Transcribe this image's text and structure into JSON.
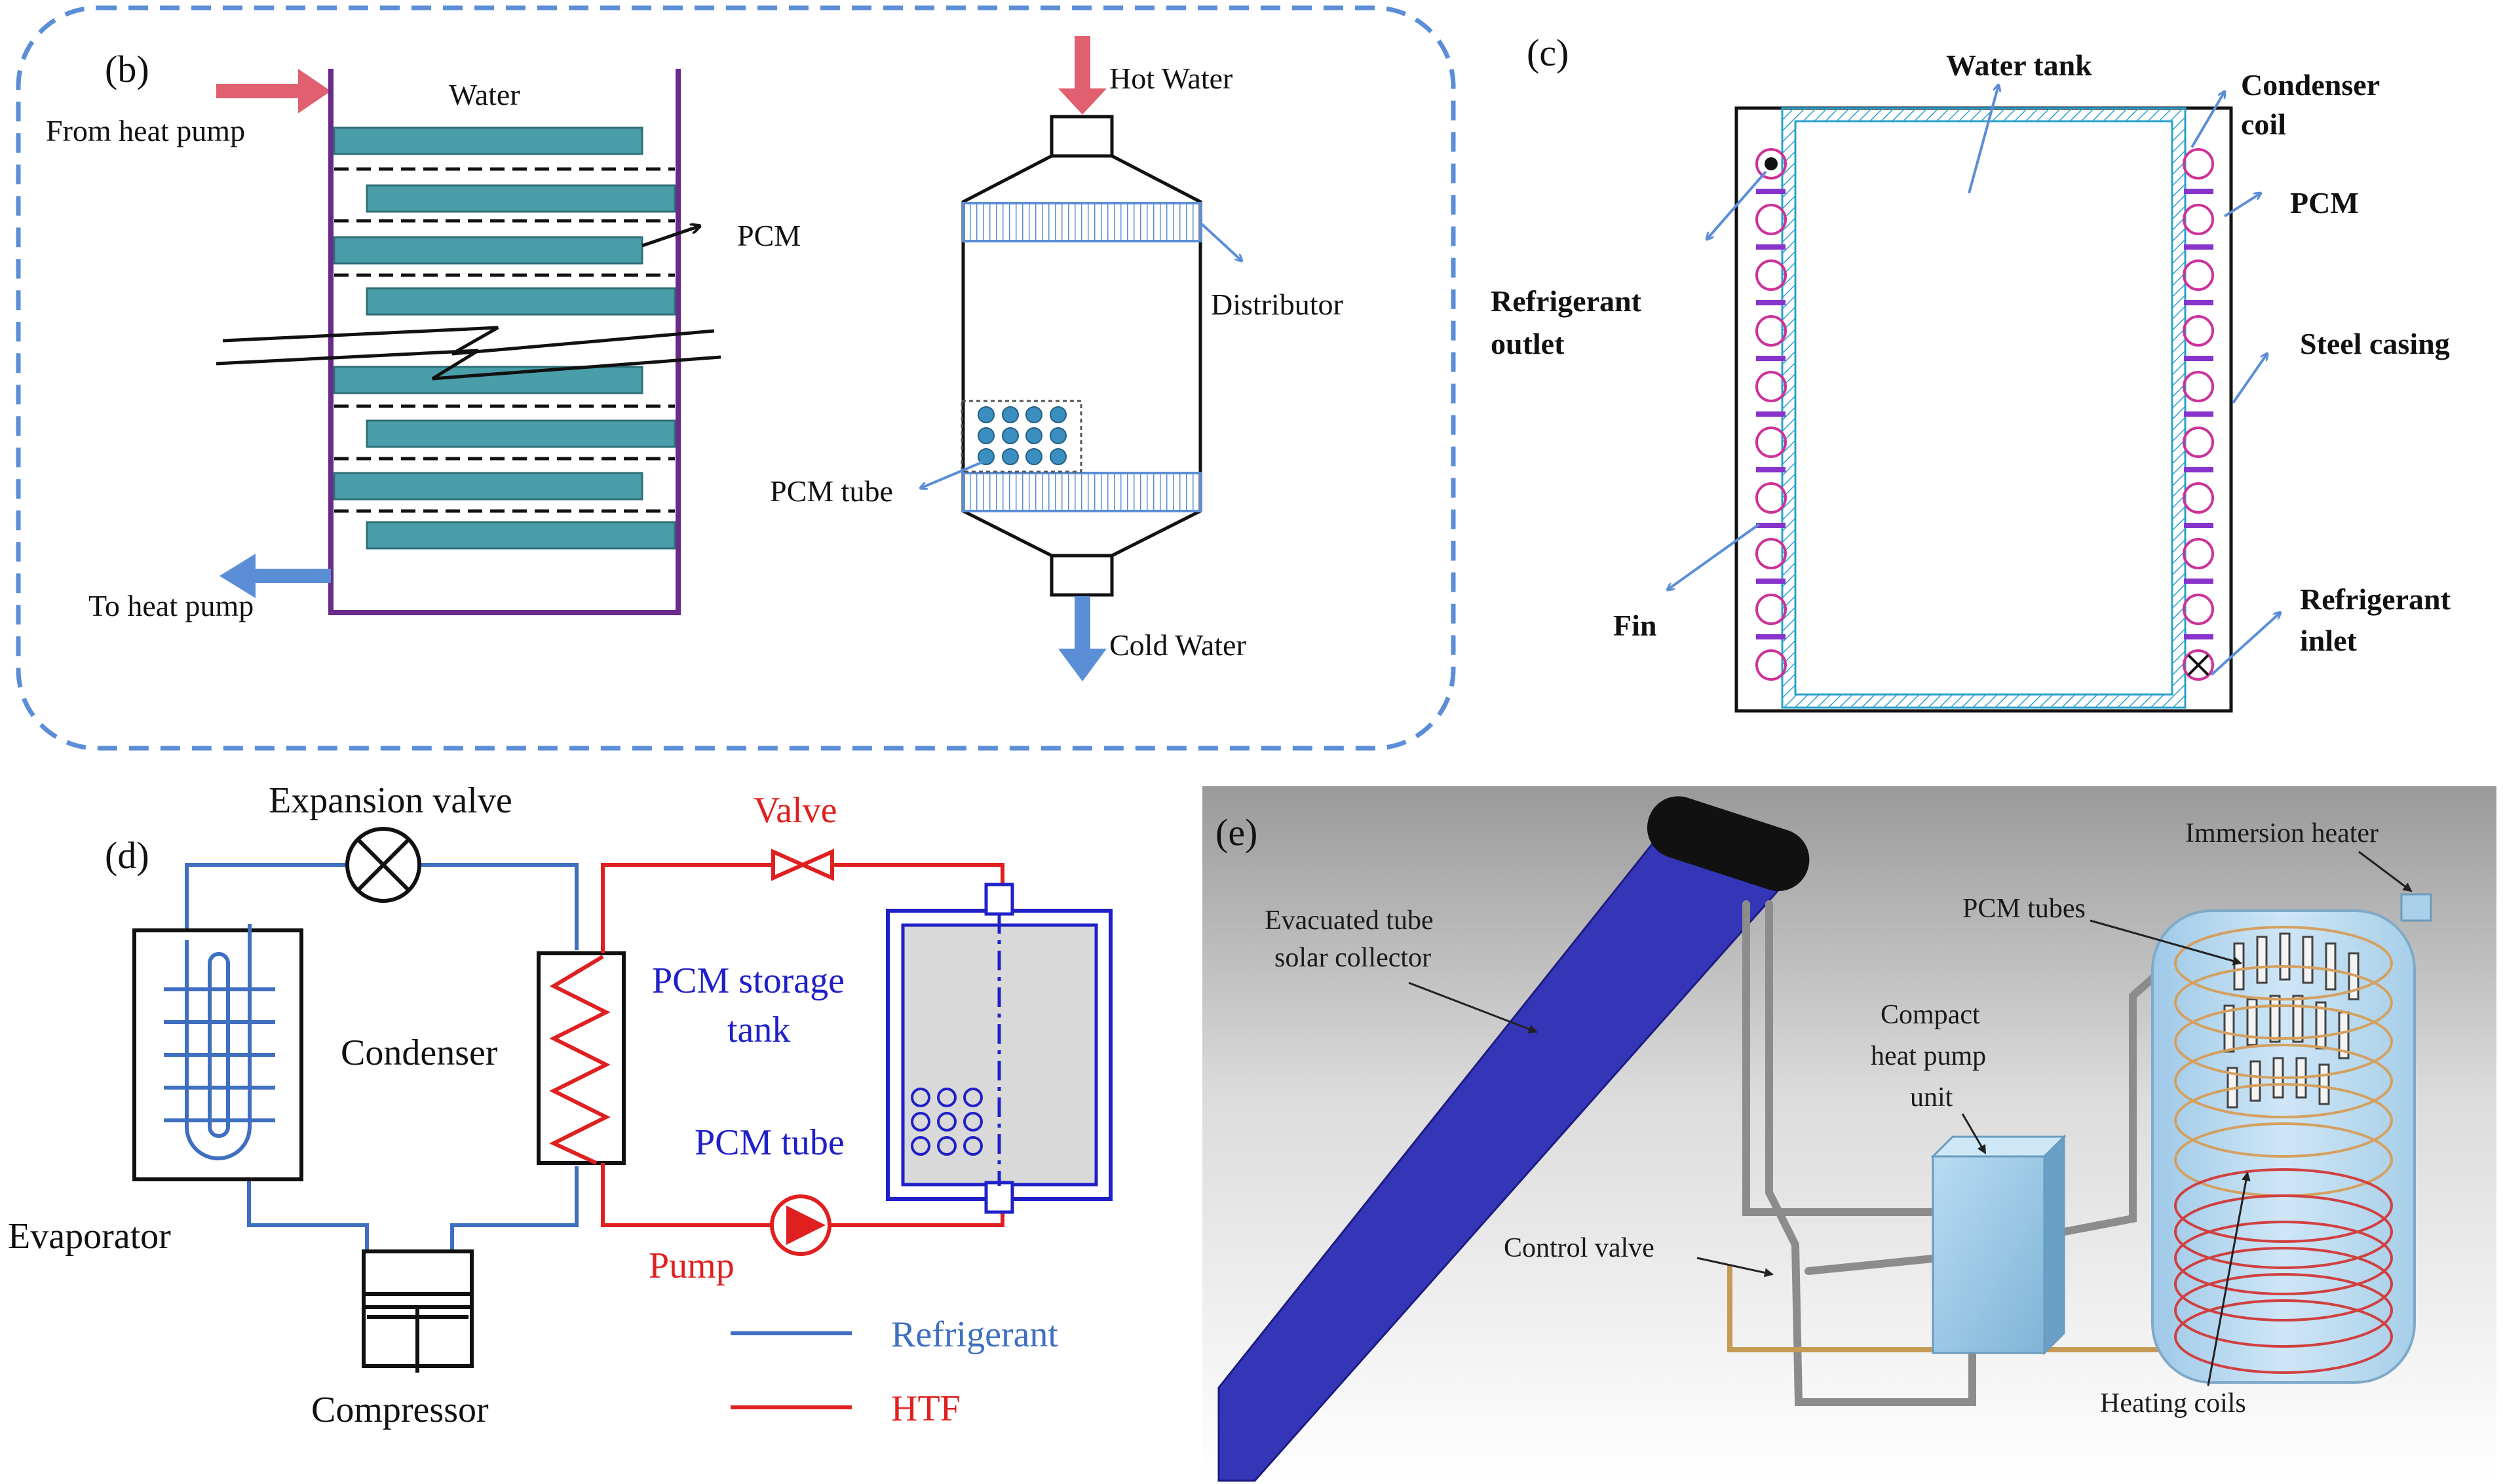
{
  "panels": {
    "b": {
      "tag": "(b)",
      "from_heat_pump": "From heat pump",
      "water": "Water",
      "pcm": "PCM",
      "to_heat_pump": "To heat pump",
      "hot_water": "Hot Water",
      "distributor": "Distributor",
      "pcm_tube": "PCM tube",
      "cold_water": "Cold Water"
    },
    "c": {
      "tag": "(c)",
      "water_tank": "Water tank",
      "condenser_coil_1": "Condenser",
      "condenser_coil_2": "coil",
      "pcm": "PCM",
      "refrigerant_outlet_1": "Refrigerant",
      "refrigerant_outlet_2": "outlet",
      "steel_casing": "Steel casing",
      "fin": "Fin",
      "refrigerant_inlet_1": "Refrigerant",
      "refrigerant_inlet_2": "inlet"
    },
    "d": {
      "tag": "(d)",
      "expansion_valve": "Expansion valve",
      "valve": "Valve",
      "condenser": "Condenser",
      "pcm_storage_tank_1": "PCM storage",
      "pcm_storage_tank_2": "tank",
      "pcm_tube": "PCM tube",
      "evaporator": "Evaporator",
      "pump": "Pump",
      "compressor": "Compressor",
      "legend_refrigerant": "Refrigerant",
      "legend_htf": "HTF"
    },
    "e": {
      "tag": "(e)",
      "immersion_heater": "Immersion heater",
      "evacuated_tube_1": "Evacuated tube",
      "evacuated_tube_2": "solar collector",
      "pcm_tubes": "PCM tubes",
      "compact_hp_1": "Compact",
      "compact_hp_2": "heat pump",
      "compact_hp_3": "unit",
      "control_valve": "Control valve",
      "heating_coils": "Heating coils"
    }
  },
  "colors": {
    "dashed_border": "#5b8ed6",
    "inflow_arrow": "#e06070",
    "outflow_arrow": "#5b8ed6",
    "pcm_plate": "#4a9eaa",
    "vessel_wall": "#6a2a8a",
    "refrigerant_line": "#3f6fc0",
    "htf_line": "#e02020",
    "tank_blue": "#2020c8",
    "coil_pink": "#cc3399",
    "fin_purple": "#8833cc",
    "collector_blue": "#3535b8"
  }
}
